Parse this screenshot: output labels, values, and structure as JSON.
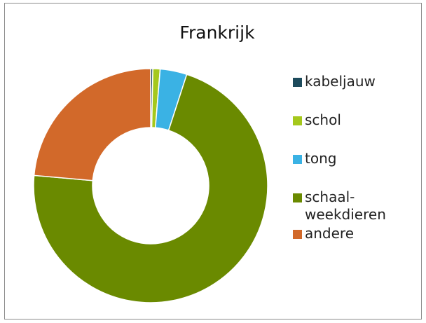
{
  "chart_data": {
    "type": "donut",
    "title": "Frankrijk",
    "categories": [
      "kabeljauw",
      "schol",
      "tong",
      "schaal-weekdieren",
      "andere"
    ],
    "values": [
      0.3,
      1.0,
      3.7,
      71.4,
      23.6
    ],
    "colors": [
      "#1d4b5c",
      "#a5c81c",
      "#3ab2e4",
      "#6a8a00",
      "#d2692a"
    ]
  }
}
